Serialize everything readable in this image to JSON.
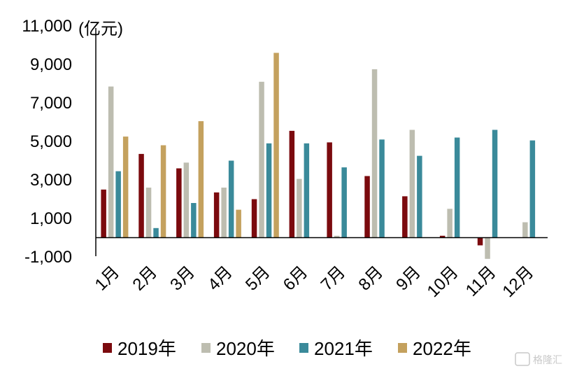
{
  "chart_data": {
    "type": "bar",
    "title": "",
    "xlabel": "",
    "ylabel": "",
    "y_unit": "(亿元)",
    "ylim": [
      -1000,
      11000
    ],
    "yticks": [
      {
        "value": 11000,
        "label": "11,000"
      },
      {
        "value": 9000,
        "label": "9,000"
      },
      {
        "value": 7000,
        "label": "7,000"
      },
      {
        "value": 5000,
        "label": "5,000"
      },
      {
        "value": 3000,
        "label": "3,000"
      },
      {
        "value": 1000,
        "label": "1,000"
      },
      {
        "value": -1000,
        "label": "-1,000"
      }
    ],
    "categories": [
      "1月",
      "2月",
      "3月",
      "4月",
      "5月",
      "6月",
      "7月",
      "8月",
      "9月",
      "10月",
      "11月",
      "12月"
    ],
    "series": [
      {
        "name": "2019年",
        "color": "#7b0a0e",
        "values": [
          2500,
          4350,
          3600,
          2350,
          2000,
          5550,
          4950,
          3200,
          2150,
          100,
          -400,
          null
        ]
      },
      {
        "name": "2020年",
        "color": "#bdbdb0",
        "values": [
          7850,
          2600,
          3900,
          2600,
          8100,
          3050,
          100,
          8750,
          5600,
          1500,
          -1100,
          800
        ]
      },
      {
        "name": "2021年",
        "color": "#3a8a9a",
        "values": [
          3450,
          500,
          1800,
          4000,
          4900,
          4900,
          3650,
          5100,
          4250,
          5200,
          5600,
          5050
        ]
      },
      {
        "name": "2022年",
        "color": "#c4a15e",
        "values": [
          5250,
          4800,
          6050,
          1450,
          9600,
          null,
          null,
          null,
          null,
          null,
          null,
          null
        ]
      }
    ],
    "legend_position": "bottom",
    "grid": false
  },
  "watermark": {
    "text": "格隆汇"
  }
}
